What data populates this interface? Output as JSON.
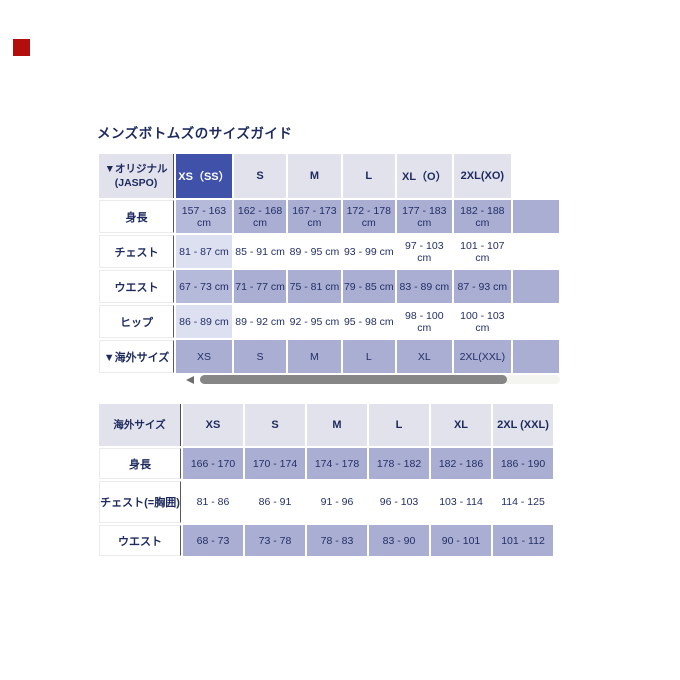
{
  "page": {
    "title": "メンズボトムズのサイズガイド"
  },
  "colors": {
    "selected_header_blue": "#3f51a8",
    "row_lavender": "#a9aed2",
    "header_gray": "#e1e2ec",
    "first_column_highlight": "#dde0f1",
    "text_navy": "#1e2a5e",
    "marker_red": "#b30e0e",
    "scrollbar_gray": "#868686"
  },
  "size_table_original": {
    "header": {
      "label_line1": "▼オリジナル",
      "label_line2": "(JASPO)",
      "sizes": [
        "XS（SS）",
        "S",
        "M",
        "L",
        "XL（O）",
        "2XL(XO)"
      ]
    },
    "rows": [
      {
        "label": "身長",
        "values": [
          "157 - 163 cm",
          "162 - 168 cm",
          "167 - 173 cm",
          "172 - 178 cm",
          "177 - 183 cm",
          "182 - 188 cm"
        ]
      },
      {
        "label": "チェスト",
        "values": [
          "81 - 87 cm",
          "85 - 91 cm",
          "89 - 95 cm",
          "93 - 99 cm",
          "97 - 103 cm",
          "101 - 107 cm"
        ]
      },
      {
        "label": "ウエスト",
        "values": [
          "67 - 73 cm",
          "71 - 77 cm",
          "75 - 81 cm",
          "79 - 85 cm",
          "83 - 89 cm",
          "87 - 93 cm"
        ]
      },
      {
        "label": "ヒップ",
        "values": [
          "86 - 89 cm",
          "89 - 92 cm",
          "92 - 95 cm",
          "95 - 98 cm",
          "98 - 100 cm",
          "100 - 103 cm"
        ]
      },
      {
        "label": "▼海外サイズ",
        "values": [
          "XS",
          "S",
          "M",
          "L",
          "XL",
          "2XL(XXL)"
        ]
      }
    ]
  },
  "size_table_overseas": {
    "header": {
      "label": "海外サイズ",
      "sizes": [
        "XS",
        "S",
        "M",
        "L",
        "XL",
        "2XL (XXL)"
      ]
    },
    "rows": [
      {
        "label": "身長",
        "values": [
          "166 - 170",
          "170 - 174",
          "174 - 178",
          "178 - 182",
          "182 - 186",
          "186 - 190"
        ]
      },
      {
        "label": "チェスト(=胸囲)",
        "values": [
          "81 - 86",
          "86 - 91",
          "91 - 96",
          "96 - 103",
          "103 - 114",
          "114 - 125"
        ]
      },
      {
        "label": "ウエスト",
        "values": [
          "68 - 73",
          "73 - 78",
          "78 - 83",
          "83 - 90",
          "90 - 101",
          "101 - 112"
        ]
      }
    ]
  }
}
